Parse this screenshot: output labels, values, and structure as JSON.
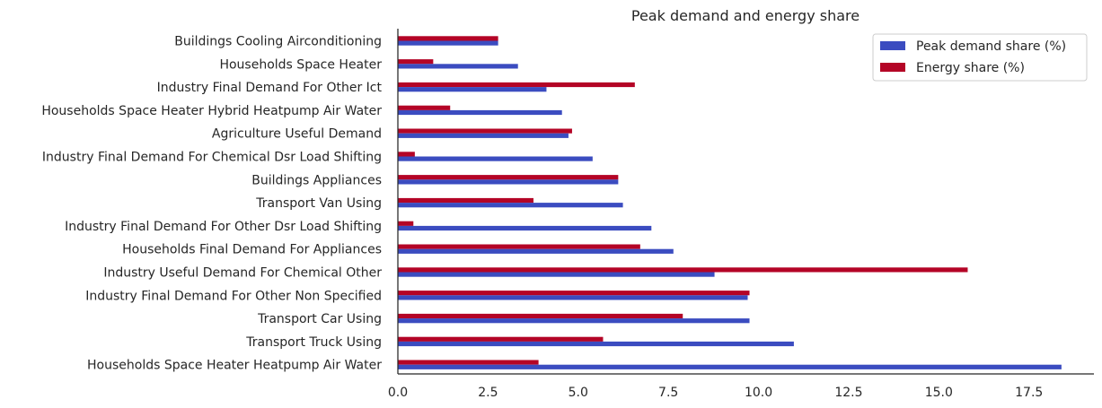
{
  "chart_data": {
    "type": "bar",
    "orientation": "horizontal",
    "title": "Peak demand and energy share",
    "xlabel": "",
    "ylabel": "",
    "xlim": [
      0,
      19.3
    ],
    "xticks": [
      0.0,
      2.5,
      5.0,
      7.5,
      10.0,
      12.5,
      15.0,
      17.5
    ],
    "xtick_labels": [
      "0.0",
      "2.5",
      "5.0",
      "7.5",
      "10.0",
      "12.5",
      "15.0",
      "17.5"
    ],
    "grid": false,
    "legend": {
      "position": "top-right"
    },
    "categories": [
      "Buildings Cooling Airconditioning",
      "Households Space Heater",
      "Industry Final Demand For Other Ict",
      "Households Space Heater Hybrid Heatpump Air Water",
      "Agriculture Useful Demand",
      "Industry Final Demand For Chemical Dsr Load Shifting",
      "Buildings Appliances",
      "Transport Van Using",
      "Industry Final Demand For Other Dsr Load Shifting",
      "Households Final Demand For Appliances",
      "Industry Useful Demand For Chemical Other",
      "Industry Final Demand For Other Non Specified",
      "Transport Car Using",
      "Transport Truck Using",
      "Households Space Heater Heatpump Air Water"
    ],
    "series": [
      {
        "name": "Peak demand share (%)",
        "color": "#3b4cc0",
        "values": [
          2.78,
          3.33,
          4.12,
          4.55,
          4.73,
          5.4,
          6.11,
          6.24,
          7.03,
          7.64,
          8.78,
          9.7,
          9.75,
          10.98,
          18.4
        ]
      },
      {
        "name": "Energy share (%)",
        "color": "#b40426",
        "values": [
          2.78,
          0.98,
          6.57,
          1.45,
          4.83,
          0.47,
          6.11,
          3.76,
          0.43,
          6.72,
          15.8,
          9.75,
          7.9,
          5.69,
          3.9
        ]
      }
    ]
  }
}
